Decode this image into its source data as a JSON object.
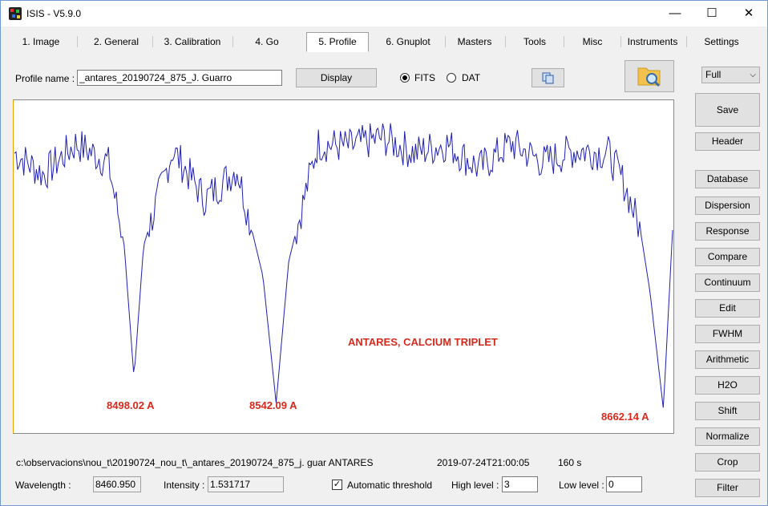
{
  "window": {
    "title": "ISIS - V5.9.0"
  },
  "tabs": [
    "1. Image",
    "2. General",
    "3. Calibration",
    "4. Go",
    "5. Profile",
    "6. Gnuplot",
    "Masters",
    "Tools",
    "Misc",
    "Instruments",
    "Settings"
  ],
  "selected_tab": "5. Profile",
  "profile": {
    "name_label": "Profile name :",
    "name_value": "_antares_20190724_875_J. Guarro",
    "display_label": "Display",
    "format_fits": "FITS",
    "format_dat": "DAT",
    "selected_format": "FITS"
  },
  "zoom_select": "Full",
  "side_buttons": [
    "Save",
    "Header",
    "Database",
    "Dispersion",
    "Response",
    "Compare",
    "Continuum",
    "Edit",
    "FWHM",
    "Arithmetic",
    "H2O",
    "Shift",
    "Normalize",
    "Crop",
    "Filter"
  ],
  "annotations": {
    "title": "ANTARES,  CALCIUM TRIPLET",
    "line1": "8498.02 A",
    "line2": "8542.09 A",
    "line3": "8662.14 A"
  },
  "status": {
    "path": "c:\\observacions\\nou_t\\20190724_nou_t\\_antares_20190724_875_j. guar ANTARES",
    "date": "2019-07-24T21:00:05",
    "exposure": "160 s"
  },
  "readout": {
    "wavelength_label": "Wavelength :",
    "wavelength_value": "8460.950",
    "intensity_label": "Intensity :",
    "intensity_value": "1.531717",
    "auto_threshold_label": "Automatic threshold",
    "auto_threshold_checked": true,
    "high_label": "High level :",
    "high_value": "3",
    "low_label": "Low level :",
    "low_value": "0"
  },
  "chart_data": {
    "type": "line",
    "series_color": "#1f1fb4",
    "x": [
      8460.95,
      8470,
      8480,
      8490,
      8495,
      8498.02,
      8501,
      8510,
      8520,
      8530,
      8538,
      8542.09,
      8546,
      8555,
      8565,
      8575,
      8585,
      8595,
      8605,
      8615,
      8625,
      8635,
      8645,
      8650,
      8655,
      8658,
      8662.14,
      8665
    ],
    "y": [
      0.85,
      0.78,
      0.88,
      0.82,
      0.55,
      0.12,
      0.55,
      0.86,
      0.7,
      0.8,
      0.45,
      0.04,
      0.5,
      0.88,
      0.87,
      0.9,
      0.85,
      0.88,
      0.8,
      0.88,
      0.82,
      0.86,
      0.85,
      0.75,
      0.6,
      0.4,
      0.02,
      0.6
    ]
  }
}
